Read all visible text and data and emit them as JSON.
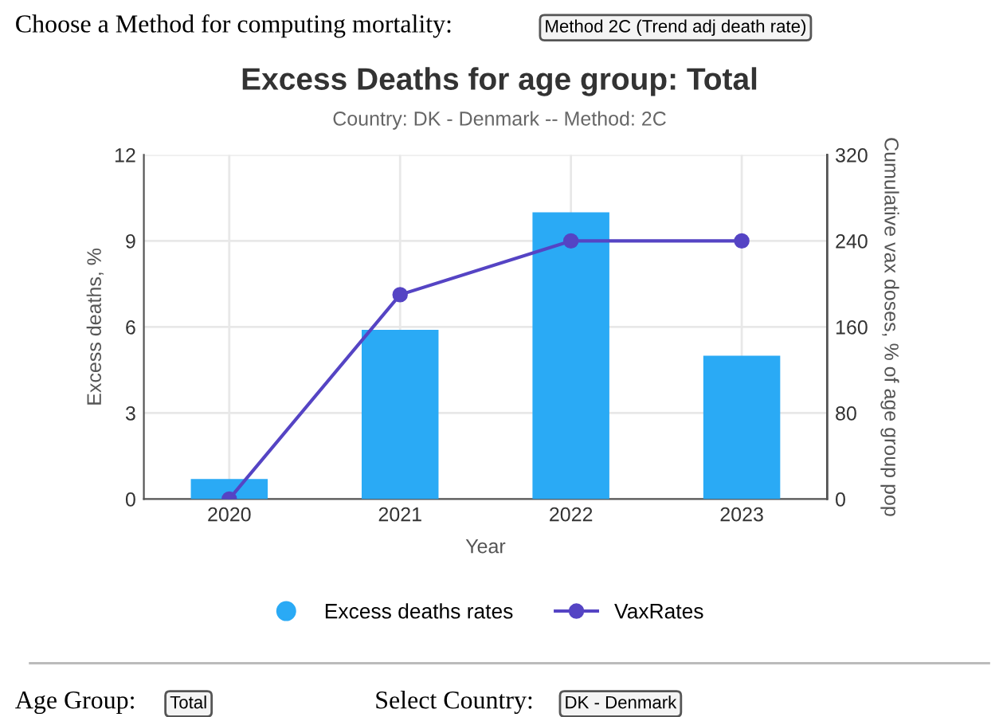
{
  "chart_data": {
    "type": "bar",
    "title": "Excess Deaths for age group: Total",
    "subtitle": "Country: DK - Denmark -- Method: 2C",
    "xlabel": "Year",
    "ylabel": "Excess deaths, %",
    "y2label": "Cumulative vax doses, % of age group pop",
    "categories": [
      "2020",
      "2021",
      "2022",
      "2023"
    ],
    "series": [
      {
        "name": "Excess deaths rates",
        "color": "#2aaaf5",
        "values": [
          0.7,
          5.9,
          10.0,
          5.0
        ]
      },
      {
        "name": "VaxRates",
        "type": "line",
        "axis": "y2",
        "color": "#5544c4",
        "marker": "circle",
        "values": [
          0,
          190,
          240,
          240
        ]
      }
    ],
    "ylim": [
      0,
      12
    ],
    "yticks": [
      0,
      3,
      6,
      9,
      12
    ],
    "y2lim": [
      0,
      320
    ],
    "y2ticks": [
      0,
      80,
      160,
      240,
      320
    ],
    "grid": true,
    "legend": "bottom",
    "annotations": [
      "Choose a Method for computing mortality:",
      "Method 2C (Trend adj death rate)",
      "Age Group:",
      "Total",
      "Select Country:",
      "DK - Denmark"
    ]
  }
}
